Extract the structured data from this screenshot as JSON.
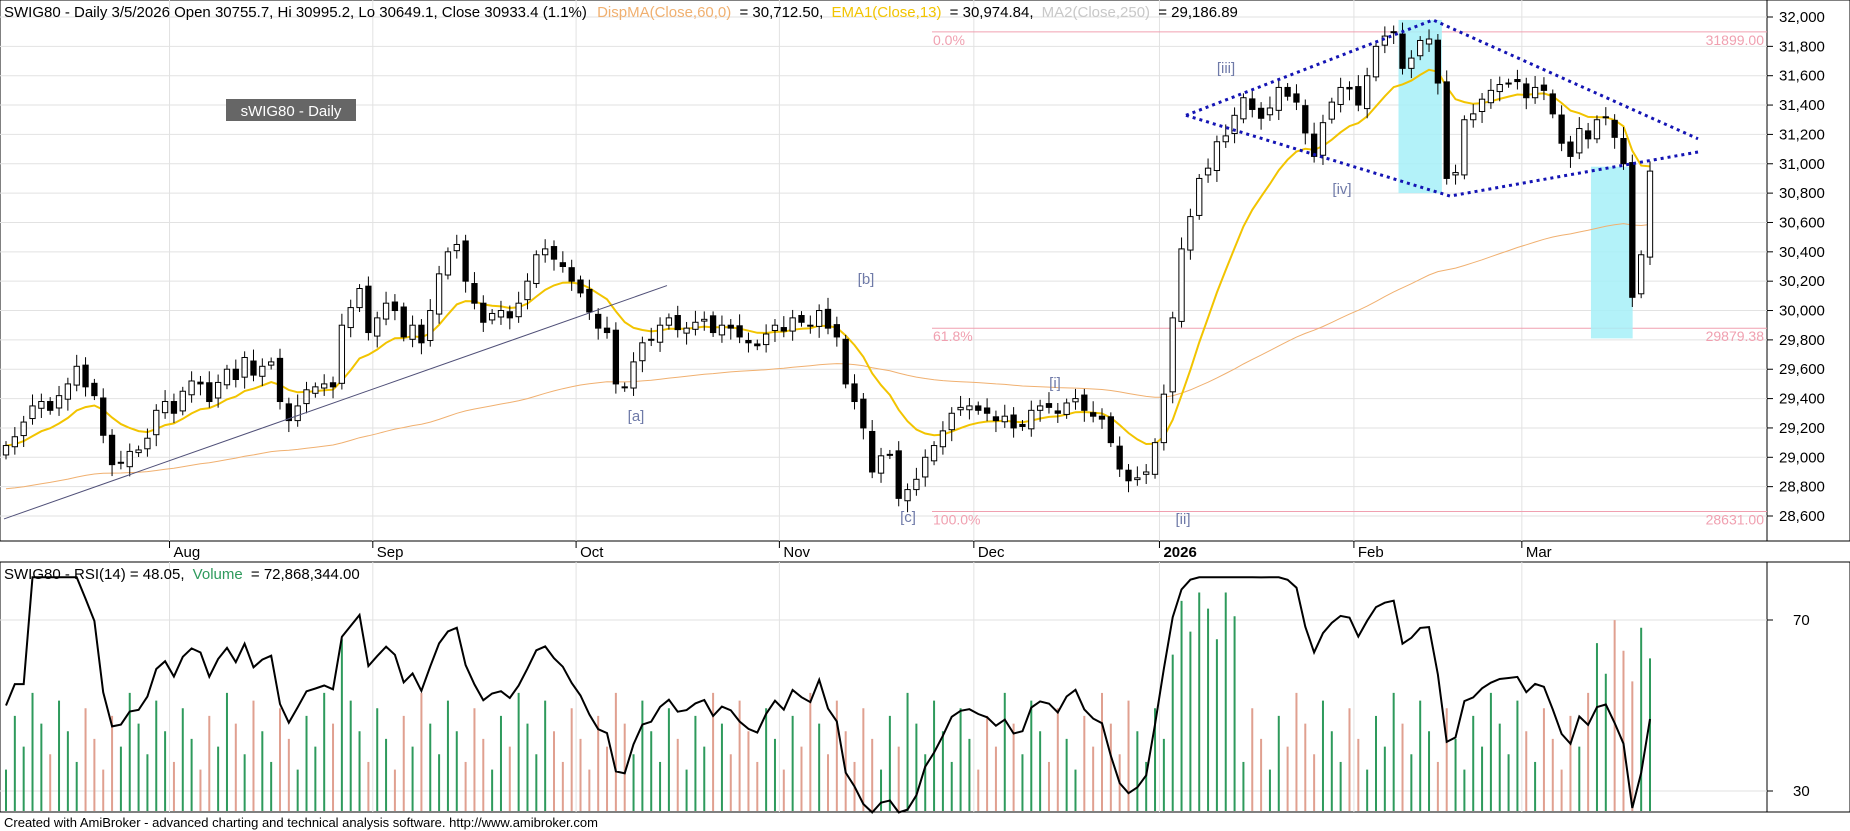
{
  "price_panel": {
    "header": {
      "main": "SWIG80 - Daily 3/5/2026 Open 30755.7, Hi 30995.2, Lo 30649.1, Close 30933.4 (1.1%)",
      "disp_ma": "DispMA(Close,60,0)",
      "disp_ma_value": "= 30,712.50,",
      "ema": "EMA1(Close,13)",
      "ema_value": "= 30,974.84,",
      "ma2": "MA2(Close,250)",
      "ma2_value": "= 29,186.89"
    },
    "title_box": "sWIG80 - Daily",
    "fib_labels": {
      "top_pct": "0.0%",
      "top_val": "31899.00",
      "mid_pct": "61.8%",
      "mid_val": "29879.38",
      "bot_pct": "100.0%",
      "bot_val": "28631.00"
    },
    "wave_labels": [
      "[a]",
      "[b]",
      "[c]",
      "[i]",
      "[ii]",
      "[iii]",
      "[iv]"
    ],
    "x_labels": [
      "Aug",
      "Sep",
      "Oct",
      "Nov",
      "Dec",
      "2026",
      "Feb",
      "Mar"
    ],
    "y_ticks": [
      "32,000",
      "31,800",
      "31,600",
      "31,400",
      "31,200",
      "31,000",
      "30,800",
      "30,600",
      "30,400",
      "30,200",
      "30,000",
      "29,800",
      "29,600",
      "29,400",
      "29,200",
      "29,000",
      "28,800",
      "28,600"
    ]
  },
  "rsi_panel": {
    "header": {
      "main": "SWIG80 - RSI(14) = 48.05,",
      "volume": "Volume",
      "volume_value": "= 72,868,344.00"
    },
    "y_ticks": [
      "70",
      "30"
    ]
  },
  "footer": "Created with AmiBroker - advanced charting and technical analysis software. http://www.amibroker.com",
  "colors": {
    "up_candle": "#ffffff",
    "down_candle": "#000000",
    "ema": "#f2c400",
    "ma250": "#f0b070",
    "trendline": "#1414b4",
    "highlight": "#a6f0f8",
    "fib": "#f0a0b0",
    "vol_up": "#2e9a5c",
    "vol_down": "#e0a090",
    "rsi": "#000000",
    "wave_label": "#6f7aa8"
  },
  "chart_data": [
    {
      "type": "candlestick",
      "title": "SWIG80 - Daily",
      "ylim": [
        28450,
        32050
      ],
      "x_ticks": [
        "Aug",
        "Sep",
        "Oct",
        "Nov",
        "Dec",
        "2026",
        "Feb",
        "Mar"
      ],
      "close": [
        29080,
        29140,
        29240,
        29350,
        29380,
        29320,
        29420,
        29500,
        29620,
        29480,
        29420,
        29150,
        28950,
        28960,
        29040,
        29050,
        29130,
        29320,
        29380,
        29300,
        29450,
        29520,
        29500,
        29380,
        29510,
        29600,
        29530,
        29680,
        29560,
        29620,
        29650,
        29380,
        29250,
        29350,
        29460,
        29480,
        29500,
        29480,
        29900,
        30020,
        30150,
        29850,
        29950,
        30050,
        30000,
        29820,
        29900,
        29780,
        30000,
        30250,
        30400,
        30450,
        30200,
        30050,
        29920,
        29980,
        30000,
        29950,
        30050,
        30200,
        30380,
        30420,
        30350,
        30300,
        30200,
        30120,
        29990,
        29880,
        29850,
        29500,
        29480,
        29650,
        29780,
        29800,
        29900,
        29950,
        29870,
        29880,
        29920,
        29940,
        29850,
        29900,
        29880,
        29820,
        29780,
        29760,
        29840,
        29900,
        29860,
        29950,
        29920,
        29900,
        30000,
        29880,
        29820,
        29500,
        29380,
        29200,
        28900,
        29010,
        29020,
        28720,
        28780,
        28850,
        29000,
        29080,
        29180,
        29300,
        29340,
        29350,
        29320,
        29300,
        29250,
        29280,
        29200,
        29210,
        29320,
        29350,
        29340,
        29300,
        29370,
        29400,
        29320,
        29280,
        29260,
        29100,
        28920,
        28840,
        28860,
        28900,
        29100,
        29430,
        29950,
        30420,
        30640,
        30900,
        30970,
        31150,
        31190,
        31330,
        31450,
        31370,
        31310,
        31380,
        31520,
        31460,
        31420,
        31210,
        31050,
        31280,
        31420,
        31520,
        31510,
        31400,
        31600,
        31800,
        31870,
        31900,
        31650,
        31720,
        31840,
        31850,
        31550,
        30900,
        30940,
        31300,
        31340,
        31440,
        31500,
        31540,
        31550,
        31560,
        31450,
        31520,
        31500,
        31340,
        31140,
        31050,
        31240,
        31170,
        31300,
        31320,
        31180,
        31000,
        30090,
        30380,
        30950
      ],
      "ema13_last": 30974.84,
      "ma250_last": 29186.89,
      "fib_levels": {
        "0.0%": 31899.0,
        "61.8%": 29879.38,
        "100.0%": 28631.0
      }
    },
    {
      "type": "line",
      "title": "SWIG80 - RSI(14)",
      "ylim": [
        25,
        80
      ],
      "series": [
        {
          "name": "RSI(14)",
          "last": 48.05
        },
        {
          "name": "Volume",
          "last": 72868344.0
        }
      ]
    }
  ]
}
